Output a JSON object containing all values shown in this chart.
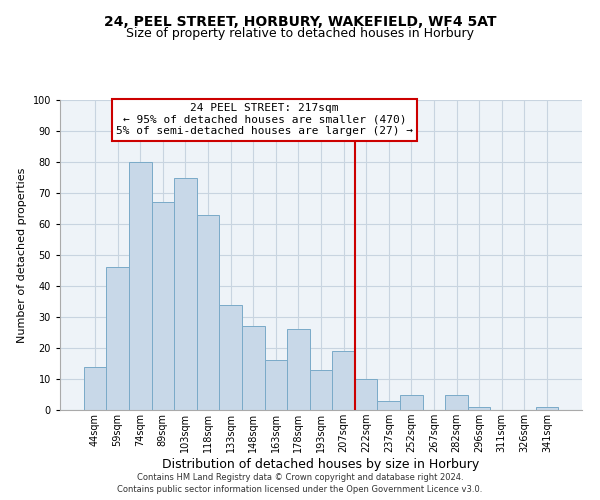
{
  "title": "24, PEEL STREET, HORBURY, WAKEFIELD, WF4 5AT",
  "subtitle": "Size of property relative to detached houses in Horbury",
  "xlabel": "Distribution of detached houses by size in Horbury",
  "ylabel": "Number of detached properties",
  "bar_labels": [
    "44sqm",
    "59sqm",
    "74sqm",
    "89sqm",
    "103sqm",
    "118sqm",
    "133sqm",
    "148sqm",
    "163sqm",
    "178sqm",
    "193sqm",
    "207sqm",
    "222sqm",
    "237sqm",
    "252sqm",
    "267sqm",
    "282sqm",
    "296sqm",
    "311sqm",
    "326sqm",
    "341sqm"
  ],
  "bar_values": [
    14,
    46,
    80,
    67,
    75,
    63,
    34,
    27,
    16,
    26,
    13,
    19,
    10,
    3,
    5,
    0,
    5,
    1,
    0,
    0,
    1
  ],
  "bar_color": "#c8d8e8",
  "bar_edge_color": "#7aaac8",
  "ylim": [
    0,
    100
  ],
  "grid_color": "#c8d4e0",
  "background_color": "#eef3f8",
  "vline_color": "#cc0000",
  "annotation_title": "24 PEEL STREET: 217sqm",
  "annotation_line1": "← 95% of detached houses are smaller (470)",
  "annotation_line2": "5% of semi-detached houses are larger (27) →",
  "footer_line1": "Contains HM Land Registry data © Crown copyright and database right 2024.",
  "footer_line2": "Contains public sector information licensed under the Open Government Licence v3.0.",
  "title_fontsize": 10,
  "subtitle_fontsize": 9,
  "xlabel_fontsize": 9,
  "ylabel_fontsize": 8,
  "tick_fontsize": 7,
  "annotation_fontsize": 8,
  "footer_fontsize": 6
}
